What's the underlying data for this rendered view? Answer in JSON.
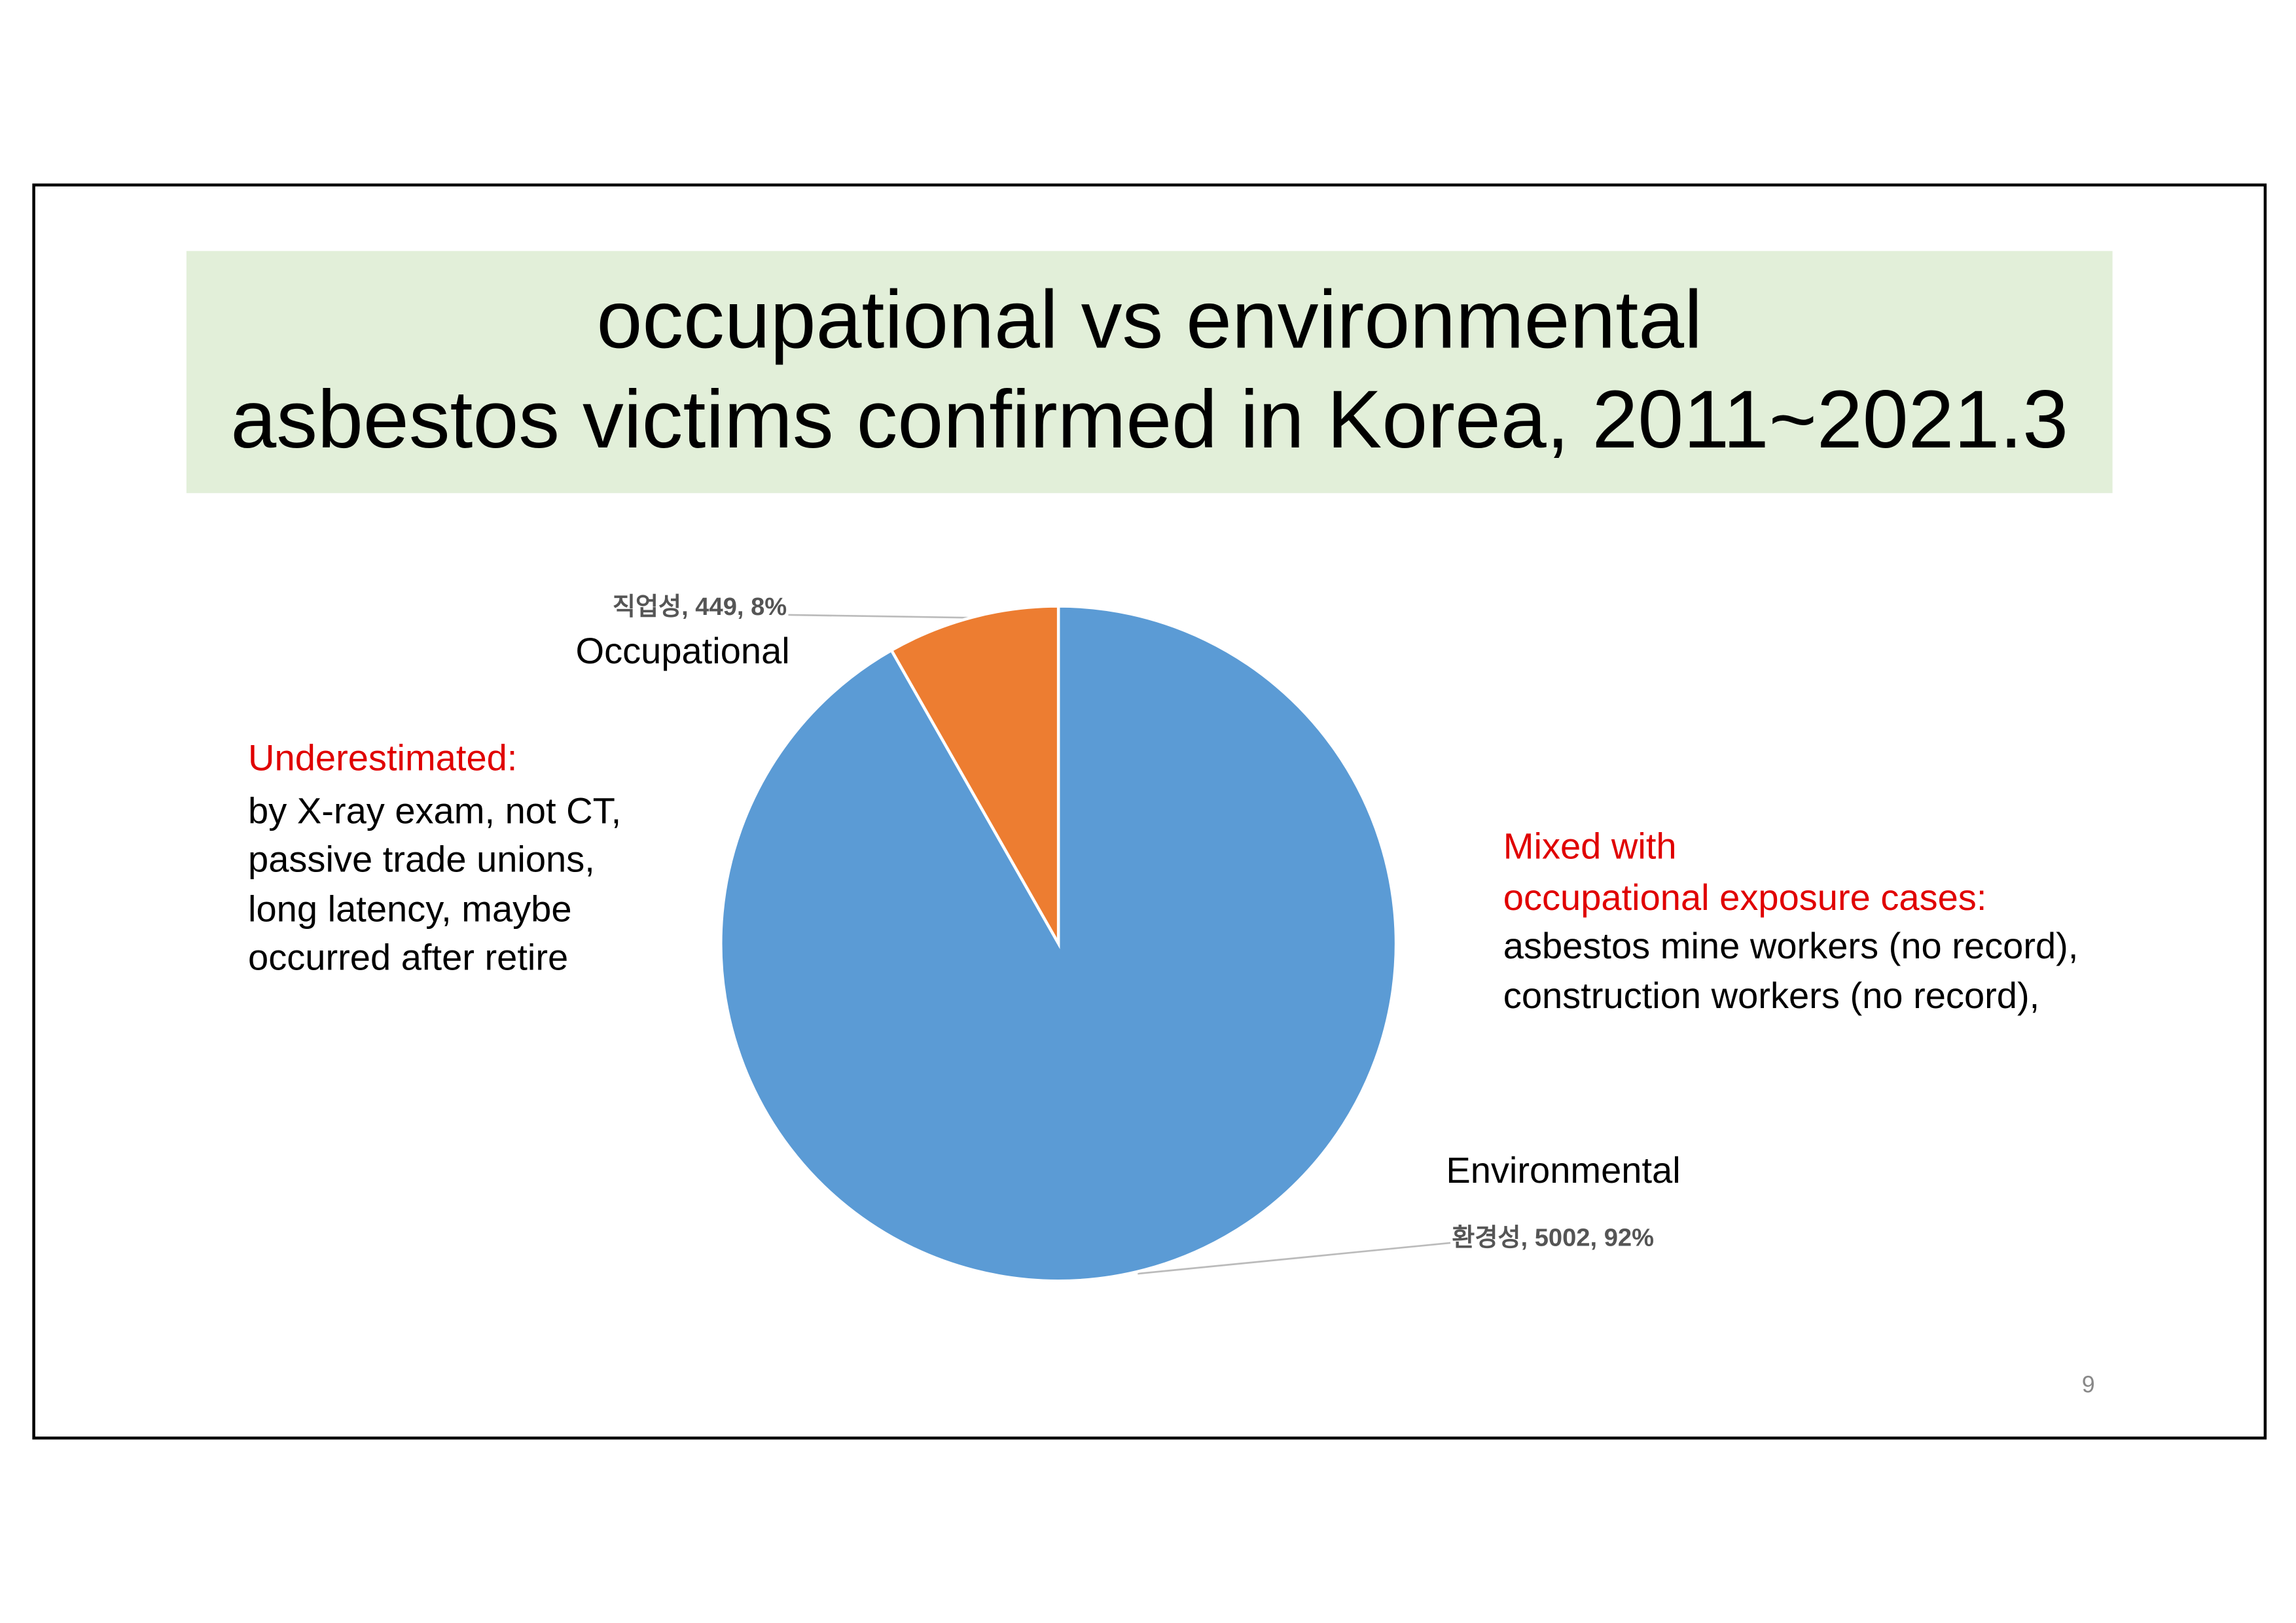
{
  "chart_data": {
    "type": "pie",
    "title": [
      "occupational vs environmental",
      "asbestos victims confirmed in Korea, 2011~2021.3"
    ],
    "categories": [
      "직업성",
      "환경성"
    ],
    "values": [
      449,
      5002
    ],
    "value_labels": [
      ", 449, 8%",
      ", 5002, 92%"
    ],
    "colors": [
      "#ed7d31",
      "#5b9bd5"
    ],
    "annotations": {
      "slice_names": [
        "Occupational",
        "Environmental"
      ],
      "left_heading": "Underestimated:",
      "left_lines": [
        "by X-ray exam, not CT,",
        "passive trade unions,",
        "long latency, maybe",
        "occurred after retire"
      ],
      "right_heading": [
        "Mixed with",
        "occupational exposure cases:"
      ],
      "right_lines": [
        "asbestos mine workers (no record),",
        "construction workers (no record),"
      ]
    }
  },
  "page_number": "9"
}
